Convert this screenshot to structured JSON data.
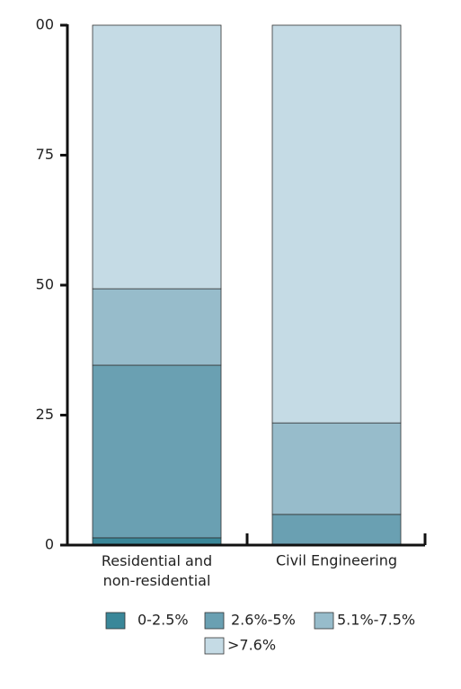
{
  "chart_data": {
    "type": "stacked_bar",
    "categories": [
      "Residential and\nnon-residential",
      "Civil Engineering"
    ],
    "series": [
      {
        "name": "0-2.5%",
        "color": "#3a8799",
        "values": [
          1.4,
          0
        ]
      },
      {
        "name": "2.6%-5%",
        "color": "#6aa0b2",
        "values": [
          33.2,
          5.9
        ]
      },
      {
        "name": "5.1%-7.5%",
        "color": "#97bccb",
        "values": [
          14.7,
          17.6
        ]
      },
      {
        "name": ">7.6%",
        "color": "#c5dbe5",
        "values": [
          50.7,
          76.5
        ]
      }
    ],
    "ylim": [
      0,
      100
    ],
    "yticks": [
      0,
      25,
      50,
      75,
      {
        "value": 100,
        "label": "00"
      }
    ]
  }
}
